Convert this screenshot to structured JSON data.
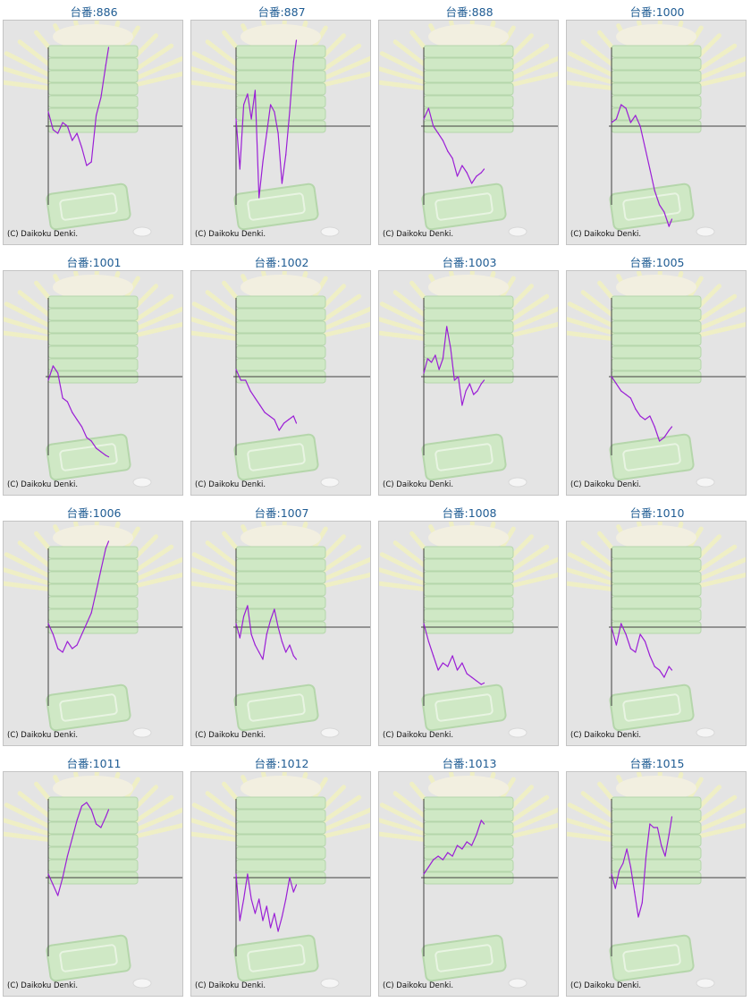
{
  "copyright": "(C) Daikoku Denki.",
  "colors": {
    "line": "#9b1fd6",
    "axis": "#404040",
    "title": "#1f5c93",
    "panel_bg": "#e4e4e4"
  },
  "chart_data": [
    {
      "type": "line",
      "title": "台番:886",
      "x": [
        0,
        5,
        10,
        15,
        20,
        25,
        30,
        35,
        40,
        45,
        50,
        55,
        60,
        63
      ],
      "values": [
        0.2,
        -0.05,
        -0.1,
        0.05,
        0.0,
        -0.2,
        -0.1,
        -0.3,
        -0.55,
        -0.5,
        0.15,
        0.4,
        0.85,
        1.1
      ]
    },
    {
      "type": "line",
      "title": "台番:887",
      "x": [
        0,
        4,
        8,
        12,
        16,
        20,
        24,
        28,
        32,
        36,
        40,
        44,
        48,
        52,
        56,
        60,
        63
      ],
      "values": [
        0.1,
        -0.6,
        0.3,
        0.45,
        0.1,
        0.5,
        -1.0,
        -0.5,
        -0.1,
        0.3,
        0.2,
        -0.1,
        -0.8,
        -0.4,
        0.2,
        0.9,
        1.2
      ]
    },
    {
      "type": "line",
      "title": "台番:888",
      "x": [
        0,
        5,
        10,
        15,
        20,
        25,
        30,
        35,
        40,
        45,
        50,
        55,
        60,
        63
      ],
      "values": [
        0.1,
        0.25,
        0.0,
        -0.1,
        -0.2,
        -0.35,
        -0.45,
        -0.7,
        -0.55,
        -0.65,
        -0.8,
        -0.7,
        -0.65,
        -0.6
      ]
    },
    {
      "type": "line",
      "title": "台番:1000",
      "x": [
        0,
        5,
        10,
        15,
        20,
        25,
        30,
        35,
        40,
        45,
        50,
        55,
        60,
        63
      ],
      "values": [
        0.05,
        0.1,
        0.3,
        0.25,
        0.05,
        0.15,
        0.0,
        -0.3,
        -0.6,
        -0.9,
        -1.1,
        -1.2,
        -1.4,
        -1.3
      ]
    },
    {
      "type": "line",
      "title": "台番:1001",
      "x": [
        0,
        5,
        10,
        15,
        20,
        25,
        30,
        35,
        40,
        45,
        50,
        55,
        60,
        63
      ],
      "values": [
        -0.05,
        0.15,
        0.05,
        -0.3,
        -0.35,
        -0.5,
        -0.6,
        -0.7,
        -0.85,
        -0.9,
        -1.0,
        -1.05,
        -1.1,
        -1.12
      ]
    },
    {
      "type": "line",
      "title": "台番:1002",
      "x": [
        0,
        5,
        10,
        15,
        20,
        25,
        30,
        35,
        40,
        45,
        50,
        55,
        60,
        63
      ],
      "values": [
        0.1,
        -0.05,
        -0.05,
        -0.2,
        -0.3,
        -0.4,
        -0.5,
        -0.55,
        -0.6,
        -0.75,
        -0.65,
        -0.6,
        -0.55,
        -0.65
      ]
    },
    {
      "type": "line",
      "title": "台番:1003",
      "x": [
        0,
        4,
        8,
        12,
        16,
        20,
        24,
        28,
        32,
        36,
        40,
        44,
        48,
        52,
        56,
        60,
        63
      ],
      "values": [
        0.05,
        0.25,
        0.2,
        0.3,
        0.1,
        0.25,
        0.7,
        0.4,
        -0.05,
        0.0,
        -0.4,
        -0.2,
        -0.1,
        -0.25,
        -0.2,
        -0.1,
        -0.05
      ]
    },
    {
      "type": "line",
      "title": "台番:1005",
      "x": [
        0,
        5,
        10,
        15,
        20,
        25,
        30,
        35,
        40,
        45,
        50,
        55,
        60,
        63
      ],
      "values": [
        0.0,
        -0.1,
        -0.2,
        -0.25,
        -0.3,
        -0.45,
        -0.55,
        -0.6,
        -0.55,
        -0.7,
        -0.9,
        -0.85,
        -0.75,
        -0.7
      ]
    },
    {
      "type": "line",
      "title": "台番:1006",
      "x": [
        0,
        5,
        10,
        15,
        20,
        25,
        30,
        35,
        40,
        45,
        50,
        55,
        60,
        63
      ],
      "values": [
        0.05,
        -0.1,
        -0.3,
        -0.35,
        -0.2,
        -0.3,
        -0.25,
        -0.1,
        0.05,
        0.2,
        0.5,
        0.8,
        1.1,
        1.2
      ]
    },
    {
      "type": "line",
      "title": "台番:1007",
      "x": [
        0,
        4,
        8,
        12,
        16,
        20,
        24,
        28,
        32,
        36,
        40,
        44,
        48,
        52,
        56,
        60,
        63
      ],
      "values": [
        0.05,
        -0.15,
        0.15,
        0.3,
        -0.1,
        -0.25,
        -0.35,
        -0.45,
        -0.1,
        0.1,
        0.25,
        0.0,
        -0.2,
        -0.35,
        -0.25,
        -0.4,
        -0.45
      ]
    },
    {
      "type": "line",
      "title": "台番:1008",
      "x": [
        0,
        5,
        10,
        15,
        20,
        25,
        30,
        35,
        40,
        45,
        50,
        55,
        60,
        63
      ],
      "values": [
        0.05,
        -0.2,
        -0.4,
        -0.6,
        -0.5,
        -0.55,
        -0.4,
        -0.6,
        -0.5,
        -0.65,
        -0.7,
        -0.75,
        -0.8,
        -0.78
      ]
    },
    {
      "type": "line",
      "title": "台番:1010",
      "x": [
        0,
        5,
        10,
        15,
        20,
        25,
        30,
        35,
        40,
        45,
        50,
        55,
        60,
        63
      ],
      "values": [
        0.0,
        -0.25,
        0.05,
        -0.1,
        -0.3,
        -0.35,
        -0.1,
        -0.2,
        -0.4,
        -0.55,
        -0.6,
        -0.7,
        -0.55,
        -0.6
      ]
    },
    {
      "type": "line",
      "title": "台番:1011",
      "x": [
        0,
        5,
        10,
        15,
        20,
        25,
        30,
        35,
        40,
        45,
        50,
        55,
        60,
        63
      ],
      "values": [
        0.05,
        -0.1,
        -0.25,
        0.0,
        0.3,
        0.55,
        0.8,
        1.0,
        1.05,
        0.95,
        0.75,
        0.7,
        0.85,
        0.95
      ]
    },
    {
      "type": "line",
      "title": "台番:1012",
      "x": [
        0,
        4,
        8,
        12,
        16,
        20,
        24,
        28,
        32,
        36,
        40,
        44,
        48,
        52,
        56,
        60,
        63
      ],
      "values": [
        0.05,
        -0.6,
        -0.3,
        0.05,
        -0.3,
        -0.5,
        -0.3,
        -0.6,
        -0.4,
        -0.7,
        -0.5,
        -0.75,
        -0.55,
        -0.3,
        0.0,
        -0.2,
        -0.1
      ]
    },
    {
      "type": "line",
      "title": "台番:1013",
      "x": [
        0,
        5,
        10,
        15,
        20,
        25,
        30,
        35,
        40,
        45,
        50,
        55,
        60,
        63
      ],
      "values": [
        0.05,
        0.15,
        0.25,
        0.3,
        0.25,
        0.35,
        0.3,
        0.45,
        0.4,
        0.5,
        0.45,
        0.6,
        0.8,
        0.75
      ]
    },
    {
      "type": "line",
      "title": "台番:1015",
      "x": [
        0,
        4,
        8,
        12,
        16,
        20,
        24,
        28,
        32,
        36,
        40,
        44,
        48,
        52,
        56,
        60,
        63
      ],
      "values": [
        0.05,
        -0.15,
        0.1,
        0.2,
        0.4,
        0.15,
        -0.2,
        -0.55,
        -0.35,
        0.3,
        0.75,
        0.7,
        0.7,
        0.45,
        0.3,
        0.6,
        0.85
      ]
    }
  ]
}
